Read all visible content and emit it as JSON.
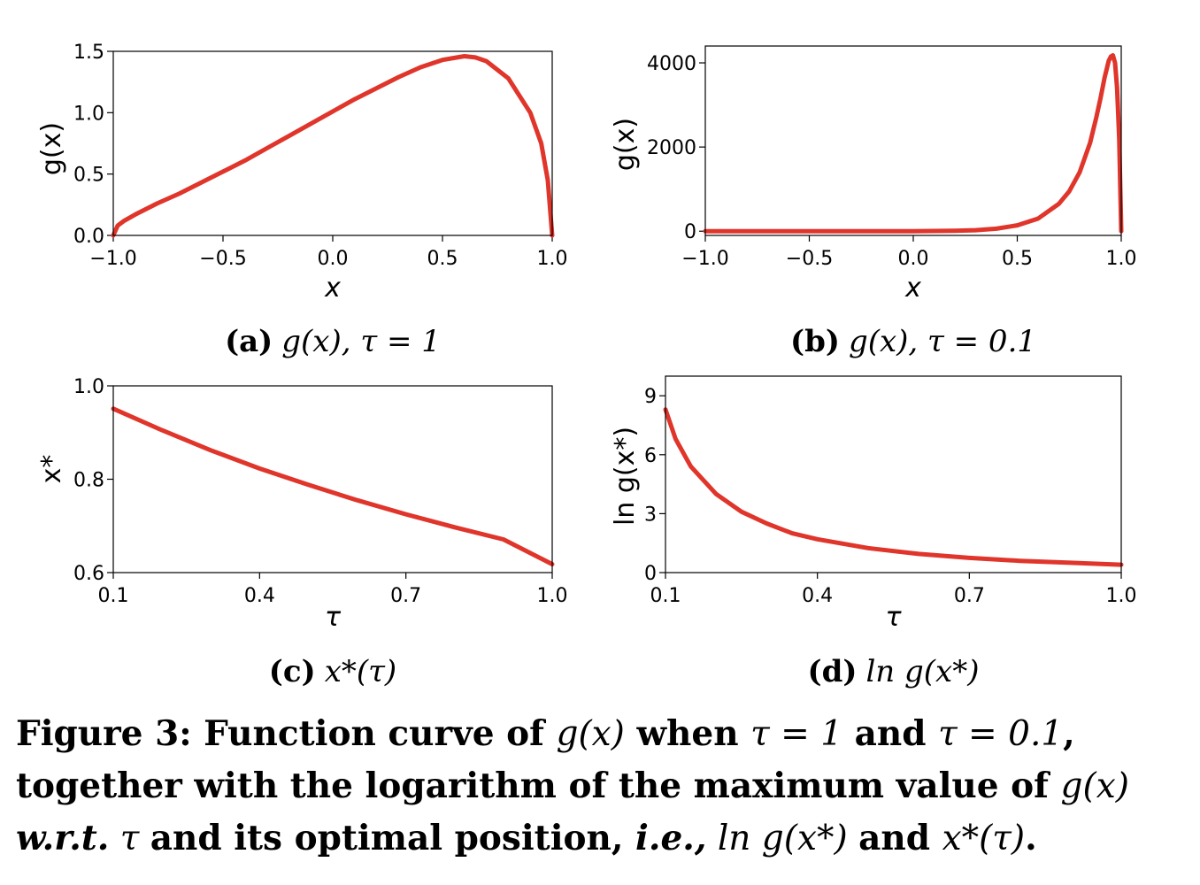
{
  "chart_data": [
    {
      "id": "a",
      "type": "line",
      "caption_label": "(a)",
      "caption_expr": "g(x), τ = 1",
      "xlabel": "x",
      "ylabel": "g(x)",
      "xlim": [
        -1.0,
        1.0
      ],
      "ylim": [
        0.0,
        1.5
      ],
      "xticks": [
        "−1.0",
        "−0.5",
        "0.0",
        "0.5",
        "1.0"
      ],
      "yticks": [
        "0.0",
        "0.5",
        "1.0",
        "1.5"
      ],
      "series": [
        {
          "color": "#e0352b",
          "x": [
            -1.0,
            -0.98,
            -0.95,
            -0.9,
            -0.8,
            -0.7,
            -0.6,
            -0.5,
            -0.4,
            -0.3,
            -0.2,
            -0.1,
            0.0,
            0.1,
            0.2,
            0.3,
            0.4,
            0.5,
            0.6,
            0.65,
            0.7,
            0.8,
            0.9,
            0.95,
            0.98,
            1.0
          ],
          "y": [
            0.0,
            0.08,
            0.12,
            0.17,
            0.26,
            0.34,
            0.43,
            0.52,
            0.61,
            0.71,
            0.81,
            0.91,
            1.01,
            1.11,
            1.2,
            1.29,
            1.37,
            1.43,
            1.46,
            1.45,
            1.42,
            1.28,
            1.0,
            0.75,
            0.45,
            0.0
          ]
        }
      ]
    },
    {
      "id": "b",
      "type": "line",
      "caption_label": "(b)",
      "caption_expr": "g(x), τ = 0.1",
      "xlabel": "x",
      "ylabel": "g(x)",
      "xlim": [
        -1.0,
        1.0
      ],
      "ylim": [
        -100,
        4400
      ],
      "xticks": [
        "−1.0",
        "−0.5",
        "0.0",
        "0.5",
        "1.0"
      ],
      "yticks": [
        "0",
        "2000",
        "4000"
      ],
      "series": [
        {
          "color": "#e0352b",
          "x": [
            -1.0,
            -0.5,
            0.0,
            0.2,
            0.3,
            0.4,
            0.5,
            0.6,
            0.7,
            0.75,
            0.8,
            0.85,
            0.88,
            0.9,
            0.92,
            0.94,
            0.95,
            0.96,
            0.97,
            0.98,
            0.99,
            1.0
          ],
          "y": [
            0,
            0,
            0,
            10,
            25,
            60,
            140,
            300,
            650,
            950,
            1400,
            2100,
            2700,
            3150,
            3650,
            4050,
            4150,
            4180,
            4000,
            3400,
            2200,
            0
          ]
        }
      ]
    },
    {
      "id": "c",
      "type": "line",
      "caption_label": "(c)",
      "caption_expr": "x*(τ)",
      "xlabel": "τ",
      "ylabel": "x*",
      "xlim": [
        0.1,
        1.0
      ],
      "ylim": [
        0.6,
        1.0
      ],
      "xticks": [
        "0.1",
        "0.4",
        "0.7",
        "1.0"
      ],
      "yticks": [
        "0.6",
        "0.8",
        "1.0"
      ],
      "series": [
        {
          "color": "#e0352b",
          "x": [
            0.1,
            0.2,
            0.3,
            0.4,
            0.5,
            0.6,
            0.7,
            0.8,
            0.9,
            1.0
          ],
          "y": [
            0.951,
            0.905,
            0.862,
            0.823,
            0.788,
            0.755,
            0.725,
            0.697,
            0.671,
            0.618
          ]
        }
      ]
    },
    {
      "id": "d",
      "type": "line",
      "caption_label": "(d)",
      "caption_expr": "ln g(x*)",
      "xlabel": "τ",
      "ylabel": "ln g(x*)",
      "xlim": [
        0.1,
        1.0
      ],
      "ylim": [
        0,
        10
      ],
      "xticks": [
        "0.1",
        "0.4",
        "0.7",
        "1.0"
      ],
      "yticks": [
        "0",
        "3",
        "6",
        "9"
      ],
      "series": [
        {
          "color": "#e0352b",
          "x": [
            0.1,
            0.12,
            0.15,
            0.2,
            0.25,
            0.3,
            0.35,
            0.4,
            0.5,
            0.6,
            0.7,
            0.8,
            0.9,
            1.0
          ],
          "y": [
            8.3,
            6.8,
            5.4,
            4.0,
            3.1,
            2.5,
            2.0,
            1.7,
            1.25,
            0.95,
            0.75,
            0.6,
            0.5,
            0.4
          ]
        }
      ]
    }
  ],
  "figure_caption": {
    "line1_prefix": "Figure 3: Function curve of ",
    "line1_g": "g(x)",
    "line1_when": " when ",
    "line1_expr1": "τ = 1",
    "line1_and": " and ",
    "line1_expr2": "τ = 0.1",
    "line1_end": ",",
    "line2_text": "together with the logarithm of the maximum value of ",
    "line2_g": "g(x)",
    "line3_wrt": "w.r.t.",
    "line3_tau": " τ ",
    "line3_mid": "and its optimal position, ",
    "line3_ie": "i.e.,",
    "line3_ln": " ln g(x*) ",
    "line3_and": "and ",
    "line3_x": "x*(τ)",
    "line3_end": "."
  }
}
